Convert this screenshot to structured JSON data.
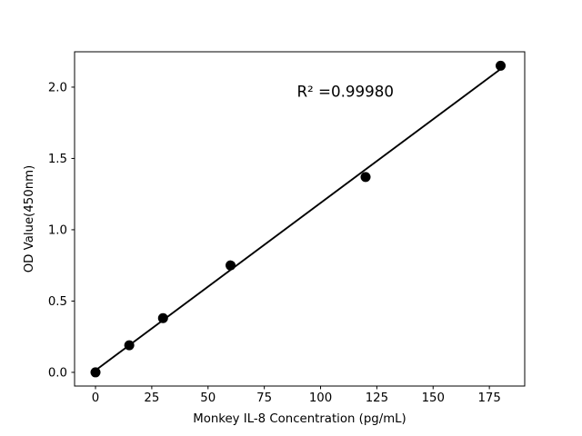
{
  "figure": {
    "background": "#ffffff"
  },
  "chart_data": {
    "type": "scatter",
    "title": "",
    "xlabel": "Monkey IL-8 Concentration (pg/mL)",
    "ylabel": "OD Value(450nm)",
    "points": {
      "x": [
        0,
        15,
        30,
        60,
        120,
        180
      ],
      "y": [
        0.0,
        0.19,
        0.38,
        0.75,
        1.37,
        2.15
      ]
    },
    "fit_line": {
      "x": [
        0,
        180
      ],
      "y": [
        0.014,
        2.127
      ],
      "slope": 0.01174,
      "intercept": 0.0142
    },
    "annotation": {
      "text": "R² =0.99980",
      "x": 111,
      "y": 1.97
    },
    "axes": {
      "xlim": [
        -9.3,
        190.7
      ],
      "ylim": [
        -0.096,
        2.248
      ],
      "x_ticks": [
        0,
        25,
        50,
        75,
        100,
        125,
        150,
        175
      ],
      "x_tick_labels": [
        "0",
        "25",
        "50",
        "75",
        "100",
        "125",
        "150",
        "175"
      ],
      "y_ticks": [
        0.0,
        0.5,
        1.0,
        1.5,
        2.0
      ],
      "y_tick_labels": [
        "0.0",
        "0.5",
        "1.0",
        "1.5",
        "2.0"
      ],
      "grid": false
    },
    "colors": {
      "marker": "#000000",
      "line": "#000000",
      "spine": "#000000",
      "text": "#000000"
    }
  }
}
